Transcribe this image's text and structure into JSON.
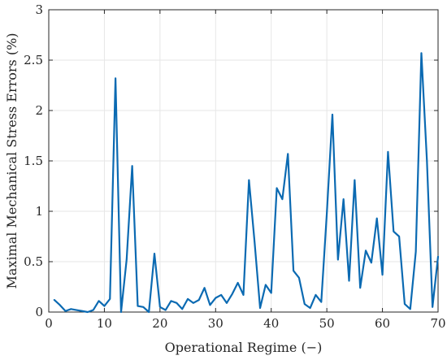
{
  "chart_data": {
    "type": "line",
    "title": "",
    "xlabel": "Operational Regime (−)",
    "ylabel": "Maximal Mechanical Stress Errors (%)",
    "xlim": [
      0,
      70
    ],
    "ylim": [
      0,
      3
    ],
    "xticks": [
      0,
      10,
      20,
      30,
      40,
      50,
      60,
      70
    ],
    "yticks": [
      0,
      0.5,
      1,
      1.5,
      2,
      2.5,
      3
    ],
    "xtick_labels": [
      "0",
      "10",
      "20",
      "30",
      "40",
      "50",
      "60",
      "70"
    ],
    "ytick_labels": [
      "0",
      "0.5",
      "1",
      "1.5",
      "2",
      "2.5",
      "3"
    ],
    "grid": true,
    "line_color": "#0b6ab2",
    "series": [
      {
        "x": [
          1,
          2,
          3,
          4,
          5,
          6,
          7,
          8,
          9,
          10,
          11,
          12,
          13,
          14,
          15,
          16,
          17,
          18,
          19,
          20,
          21,
          22,
          23,
          24,
          25,
          26,
          27,
          28,
          29,
          30,
          31,
          32,
          33,
          34,
          35,
          36,
          37,
          38,
          39,
          40,
          41,
          42,
          43,
          44,
          45,
          46,
          47,
          48,
          49,
          50,
          51,
          52,
          53,
          54,
          55,
          56,
          57,
          58,
          59,
          60,
          61,
          62,
          63,
          64,
          65,
          66,
          67,
          68,
          69,
          70
        ],
        "y": [
          0.12,
          0.07,
          0.01,
          0.03,
          0.02,
          0.01,
          0.0,
          0.02,
          0.11,
          0.06,
          0.13,
          2.32,
          0.0,
          0.52,
          1.45,
          0.06,
          0.05,
          0.0,
          0.58,
          0.05,
          0.02,
          0.11,
          0.09,
          0.03,
          0.13,
          0.09,
          0.12,
          0.24,
          0.07,
          0.14,
          0.17,
          0.09,
          0.18,
          0.29,
          0.17,
          1.31,
          0.7,
          0.04,
          0.27,
          0.19,
          1.23,
          1.12,
          1.57,
          0.41,
          0.34,
          0.08,
          0.04,
          0.17,
          0.1,
          0.98,
          1.96,
          0.52,
          1.12,
          0.31,
          1.31,
          0.24,
          0.61,
          0.49,
          0.93,
          0.37,
          1.59,
          0.8,
          0.75,
          0.08,
          0.03,
          0.6,
          2.57,
          1.5,
          0.05,
          0.55
        ]
      }
    ]
  }
}
